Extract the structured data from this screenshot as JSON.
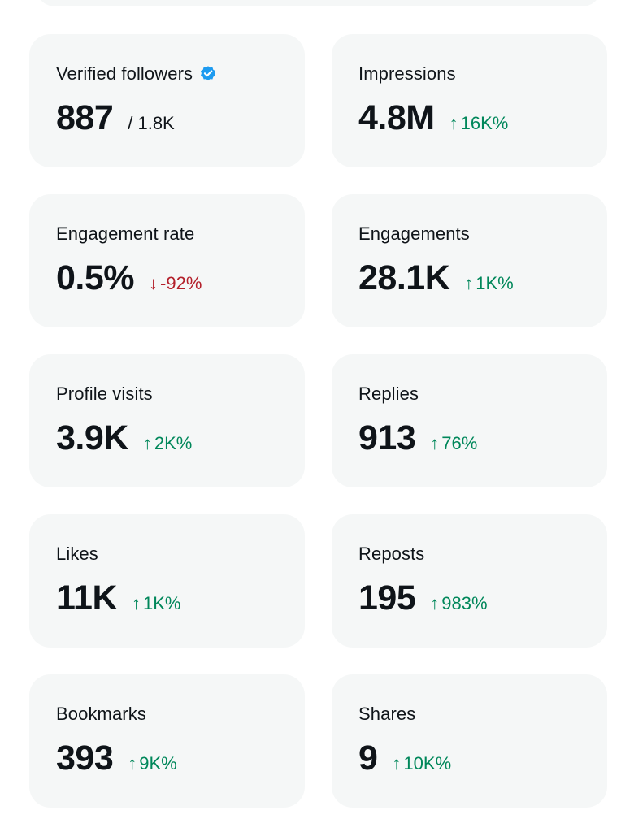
{
  "colors": {
    "card_background": "#f5f7f7",
    "text_primary": "#0f1419",
    "trend_up": "#00875a",
    "trend_down": "#b31f2a",
    "verified_badge": "#1d9bf0"
  },
  "metrics": [
    {
      "title": "Verified followers",
      "icon": "verified-badge-icon",
      "value": "887",
      "total": "/ 1.8K"
    },
    {
      "title": "Impressions",
      "value": "4.8M",
      "change_arrow": "↑",
      "change": "16K%",
      "trend": "up"
    },
    {
      "title": "Engagement rate",
      "value": "0.5%",
      "change_arrow": "↓",
      "change": "-92%",
      "trend": "down"
    },
    {
      "title": "Engagements",
      "value": "28.1K",
      "change_arrow": "↑",
      "change": "1K%",
      "trend": "up"
    },
    {
      "title": "Profile visits",
      "value": "3.9K",
      "change_arrow": "↑",
      "change": "2K%",
      "trend": "up"
    },
    {
      "title": "Replies",
      "value": "913",
      "change_arrow": "↑",
      "change": "76%",
      "trend": "up"
    },
    {
      "title": "Likes",
      "value": "11K",
      "change_arrow": "↑",
      "change": "1K%",
      "trend": "up"
    },
    {
      "title": "Reposts",
      "value": "195",
      "change_arrow": "↑",
      "change": "983%",
      "trend": "up"
    },
    {
      "title": "Bookmarks",
      "value": "393",
      "change_arrow": "↑",
      "change": "9K%",
      "trend": "up"
    },
    {
      "title": "Shares",
      "value": "9",
      "change_arrow": "↑",
      "change": "10K%",
      "trend": "up"
    }
  ]
}
